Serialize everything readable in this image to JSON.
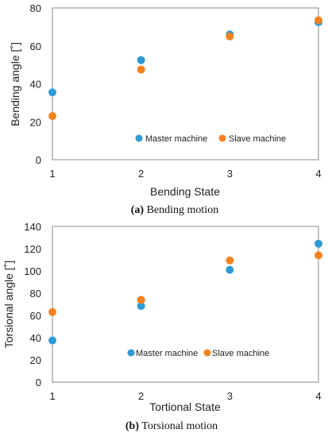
{
  "chart_data": [
    {
      "type": "scatter",
      "xlabel": "Bending State",
      "ylabel": "Bending angle [˚]",
      "caption_letter": "(a)",
      "caption_text": " Bending motion",
      "xlim": [
        1,
        4
      ],
      "ylim": [
        0,
        80
      ],
      "xticks": [
        "1",
        "2",
        "3",
        "4"
      ],
      "yticks": [
        "0",
        "20",
        "40",
        "60",
        "80"
      ],
      "grid": false,
      "legend_position": "bottom-center inside",
      "series": [
        {
          "name": "Master machine",
          "color": "#2F9BD6",
          "x": [
            1,
            2,
            3,
            4
          ],
          "y": [
            35.5,
            52.5,
            66,
            72.5
          ]
        },
        {
          "name": "Slave machine",
          "color": "#F58220",
          "x": [
            1,
            2,
            3,
            4
          ],
          "y": [
            23,
            47.5,
            65,
            73.5
          ]
        }
      ]
    },
    {
      "type": "scatter",
      "xlabel": "Tortional State",
      "ylabel": "Torsional angle [˚]",
      "caption_letter": "(b)",
      "caption_text": " Torsional motion",
      "xlim": [
        1,
        4
      ],
      "ylim": [
        0,
        140
      ],
      "xticks": [
        "1",
        "2",
        "3",
        "4"
      ],
      "yticks": [
        "0",
        "20",
        "40",
        "60",
        "80",
        "100",
        "120",
        "140"
      ],
      "grid": false,
      "legend_position": "bottom-center inside",
      "series": [
        {
          "name": "Master machine",
          "color": "#2F9BD6",
          "x": [
            1,
            2,
            3,
            4
          ],
          "y": [
            37.5,
            68.5,
            101,
            124.5
          ]
        },
        {
          "name": "Slave machine",
          "color": "#F58220",
          "x": [
            1,
            2,
            3,
            4
          ],
          "y": [
            63,
            74,
            109.5,
            114
          ]
        }
      ]
    }
  ]
}
